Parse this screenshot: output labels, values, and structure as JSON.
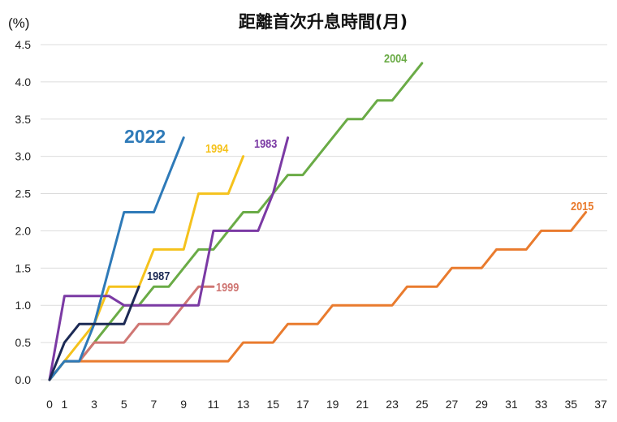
{
  "chart_data": {
    "type": "line",
    "title": "距離首次升息時間(月)",
    "unit_label": "(%)",
    "xlabel": "",
    "ylabel": "",
    "xlim": [
      0,
      37
    ],
    "ylim": [
      0,
      4.5
    ],
    "x_ticks": [
      0,
      1,
      3,
      5,
      7,
      9,
      11,
      13,
      15,
      17,
      19,
      21,
      23,
      25,
      27,
      29,
      31,
      33,
      35,
      37
    ],
    "y_ticks": [
      "0.0",
      "0.5",
      "1.0",
      "1.5",
      "2.0",
      "2.5",
      "3.0",
      "3.5",
      "4.0",
      "4.5"
    ],
    "grid": "horizontal",
    "series": [
      {
        "name": "2022",
        "color": "#2e7ab8",
        "label_size": 23,
        "points": [
          [
            0,
            0
          ],
          [
            1,
            0.25
          ],
          [
            2,
            0.25
          ],
          [
            3,
            0.75
          ],
          [
            4,
            1.5
          ],
          [
            5,
            2.25
          ],
          [
            6,
            2.25
          ],
          [
            7,
            2.25
          ],
          [
            8,
            2.75
          ],
          [
            9,
            3.25
          ]
        ]
      },
      {
        "name": "1994",
        "color": "#f5c21c",
        "label_size": 15,
        "points": [
          [
            0,
            0
          ],
          [
            1,
            0.25
          ],
          [
            2,
            0.5
          ],
          [
            3,
            0.75
          ],
          [
            4,
            1.25
          ],
          [
            5,
            1.25
          ],
          [
            6,
            1.25
          ],
          [
            7,
            1.75
          ],
          [
            8,
            1.75
          ],
          [
            9,
            1.75
          ],
          [
            10,
            2.5
          ],
          [
            11,
            2.5
          ],
          [
            12,
            2.5
          ],
          [
            13,
            3.0
          ]
        ]
      },
      {
        "name": "1983",
        "color": "#7b3aa4",
        "label_size": 15,
        "points": [
          [
            0,
            0
          ],
          [
            1,
            1.125
          ],
          [
            2,
            1.125
          ],
          [
            3,
            1.125
          ],
          [
            4,
            1.125
          ],
          [
            5,
            1.0
          ],
          [
            6,
            1.0
          ],
          [
            7,
            1.0
          ],
          [
            8,
            1.0
          ],
          [
            9,
            1.0
          ],
          [
            10,
            1.0
          ],
          [
            11,
            2.0
          ],
          [
            12,
            2.0
          ],
          [
            13,
            2.0
          ],
          [
            14,
            2.0
          ],
          [
            15,
            2.5
          ],
          [
            16,
            3.25
          ]
        ]
      },
      {
        "name": "2004",
        "color": "#6aab46",
        "label_size": 15,
        "points": [
          [
            0,
            0
          ],
          [
            1,
            0.25
          ],
          [
            2,
            0.25
          ],
          [
            3,
            0.5
          ],
          [
            4,
            0.75
          ],
          [
            5,
            1.0
          ],
          [
            6,
            1.0
          ],
          [
            7,
            1.25
          ],
          [
            8,
            1.25
          ],
          [
            9,
            1.5
          ],
          [
            10,
            1.75
          ],
          [
            11,
            1.75
          ],
          [
            12,
            2.0
          ],
          [
            13,
            2.25
          ],
          [
            14,
            2.25
          ],
          [
            15,
            2.5
          ],
          [
            16,
            2.75
          ],
          [
            17,
            2.75
          ],
          [
            18,
            3.0
          ],
          [
            19,
            3.25
          ],
          [
            20,
            3.5
          ],
          [
            21,
            3.5
          ],
          [
            22,
            3.75
          ],
          [
            23,
            3.75
          ],
          [
            24,
            4.0
          ],
          [
            25,
            4.25
          ]
        ]
      },
      {
        "name": "2015",
        "color": "#e97b2e",
        "label_size": 15,
        "points": [
          [
            0,
            0
          ],
          [
            1,
            0.25
          ],
          [
            12,
            0.25
          ],
          [
            13,
            0.5
          ],
          [
            14,
            0.5
          ],
          [
            15,
            0.5
          ],
          [
            16,
            0.75
          ],
          [
            17,
            0.75
          ],
          [
            18,
            0.75
          ],
          [
            19,
            1.0
          ],
          [
            23,
            1.0
          ],
          [
            24,
            1.25
          ],
          [
            25,
            1.25
          ],
          [
            26,
            1.25
          ],
          [
            27,
            1.5
          ],
          [
            28,
            1.5
          ],
          [
            29,
            1.5
          ],
          [
            30,
            1.75
          ],
          [
            31,
            1.75
          ],
          [
            32,
            1.75
          ],
          [
            33,
            2.0
          ],
          [
            34,
            2.0
          ],
          [
            35,
            2.0
          ],
          [
            36,
            2.25
          ]
        ]
      },
      {
        "name": "1999",
        "color": "#cf7673",
        "label_size": 15,
        "points": [
          [
            0,
            0
          ],
          [
            1,
            0.25
          ],
          [
            2,
            0.25
          ],
          [
            3,
            0.5
          ],
          [
            4,
            0.5
          ],
          [
            5,
            0.5
          ],
          [
            6,
            0.75
          ],
          [
            7,
            0.75
          ],
          [
            8,
            0.75
          ],
          [
            9,
            1.0
          ],
          [
            10,
            1.25
          ],
          [
            11,
            1.25
          ]
        ]
      },
      {
        "name": "1987",
        "color": "#1c2a55",
        "label_size": 15,
        "points": [
          [
            0,
            0
          ],
          [
            1,
            0.5
          ],
          [
            2,
            0.75
          ],
          [
            3,
            0.75
          ],
          [
            4,
            0.75
          ],
          [
            5,
            0.75
          ],
          [
            6,
            1.25
          ]
        ]
      }
    ]
  }
}
